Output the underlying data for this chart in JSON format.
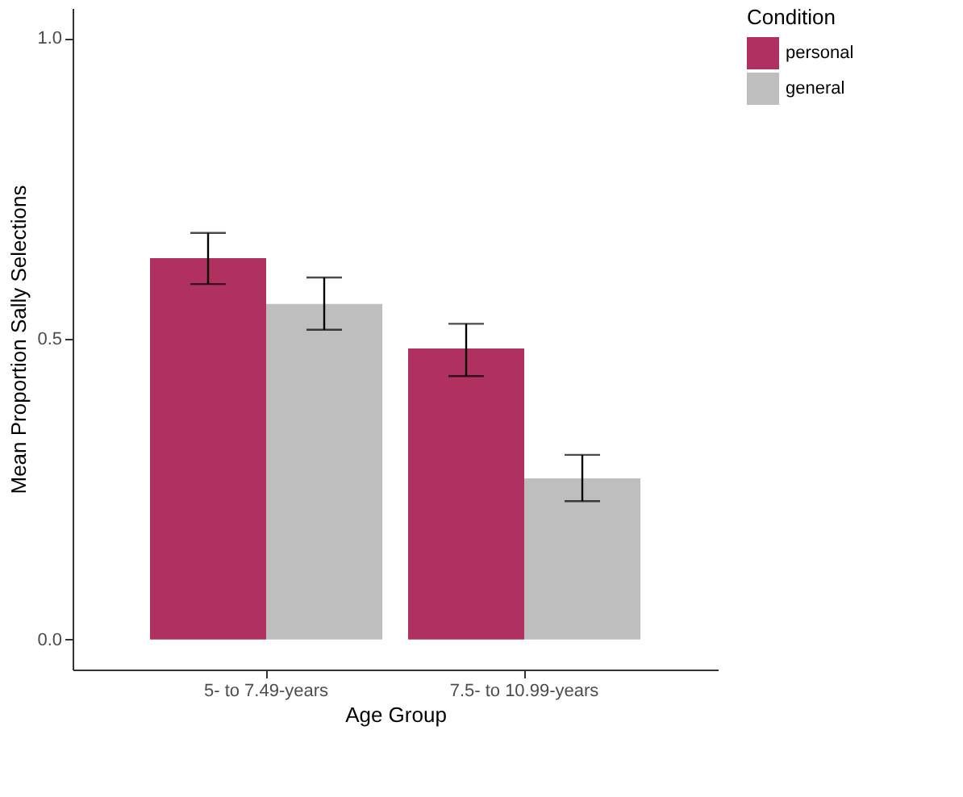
{
  "chart_data": {
    "type": "bar",
    "xlabel": "Age Group",
    "ylabel": "Mean Proportion Sally Selections",
    "legend_title": "Condition",
    "categories": [
      "5- to 7.49-years",
      "7.5- to 10.99-years"
    ],
    "series": [
      {
        "name": "personal",
        "color": "#b03060",
        "values": [
          0.634,
          0.484
        ],
        "errors": [
          [
            0.591,
            0.676
          ],
          [
            0.438,
            0.525
          ]
        ]
      },
      {
        "name": "general",
        "color": "#bebebe",
        "values": [
          0.558,
          0.268
        ],
        "errors": [
          [
            0.515,
            0.602
          ],
          [
            0.23,
            0.307
          ]
        ]
      }
    ],
    "ylim": [
      -0.05,
      1.05
    ],
    "yticks": [
      {
        "value": 0,
        "label": "0.0"
      },
      {
        "value": 0.5,
        "label": "0.5"
      },
      {
        "value": 1,
        "label": "1.0"
      }
    ],
    "grid": false,
    "legend": "right"
  }
}
